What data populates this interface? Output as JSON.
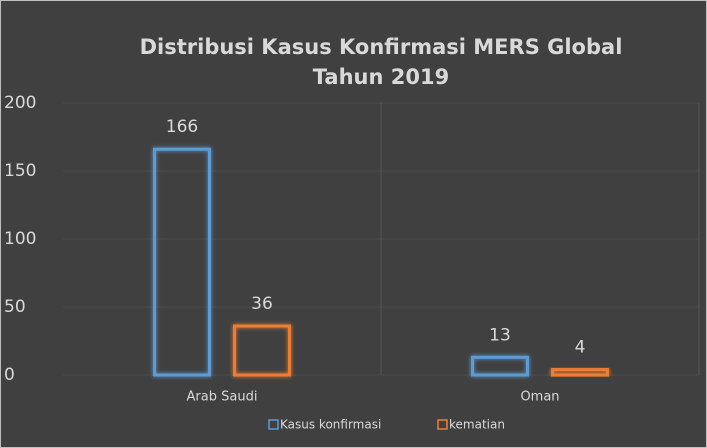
{
  "chart_data": {
    "type": "bar",
    "title": [
      "Distribusi Kasus Konfirmasi MERS Global",
      "Tahun 2019"
    ],
    "categories": [
      "Arab Saudi",
      "Oman"
    ],
    "series": [
      {
        "name": "Kasus konfirmasi",
        "color": "#5b9bd5",
        "values": [
          166,
          13
        ]
      },
      {
        "name": "kematian",
        "color": "#ed7d31",
        "values": [
          36,
          4
        ]
      }
    ],
    "ylim": [
      0,
      200
    ],
    "yticks": [
      0,
      50,
      100,
      150,
      200
    ],
    "grid": true,
    "legend": "bottom"
  }
}
